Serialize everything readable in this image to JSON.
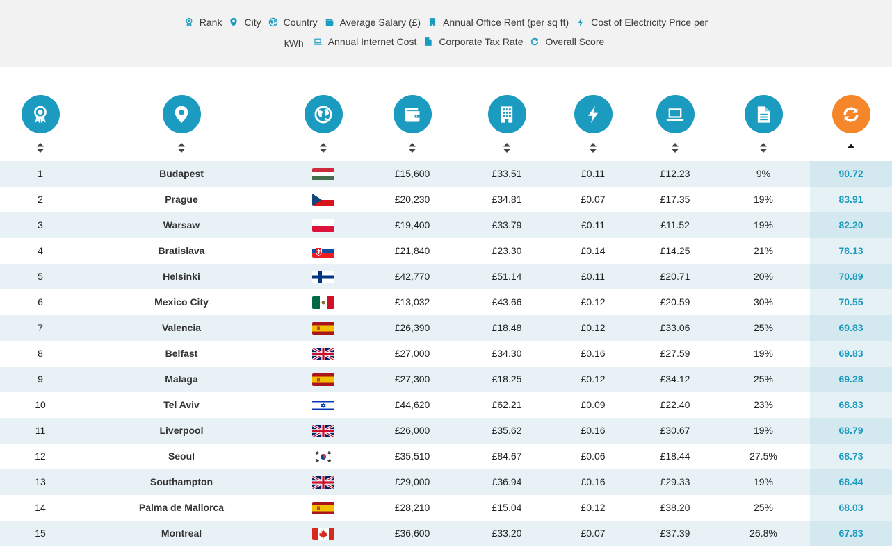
{
  "legend": {
    "line1": [
      {
        "icon": "award-icon",
        "label": "Rank"
      },
      {
        "icon": "map-pin-icon",
        "label": "City"
      },
      {
        "icon": "globe-icon",
        "label": "Country"
      },
      {
        "icon": "wallet-icon",
        "label": "Average Salary (£)"
      },
      {
        "icon": "building-icon",
        "label": "Annual Office Rent (per sq ft)"
      },
      {
        "icon": "bolt-icon",
        "label": "Cost of Electricity Price per"
      }
    ],
    "line2_prefix": "kWh",
    "line2": [
      {
        "icon": "laptop-icon",
        "label": "Annual Internet Cost"
      },
      {
        "icon": "document-icon",
        "label": "Corporate Tax Rate"
      },
      {
        "icon": "refresh-icon",
        "label": "Overall Score"
      }
    ]
  },
  "colors": {
    "accent": "#1a9bbf",
    "score_header": "#f5862a",
    "row_alt": "#e8f2f6",
    "score_col": "#d4e8f0",
    "legend_bg": "#f2f2f2"
  },
  "columns": [
    {
      "key": "rank",
      "icon": "award-icon",
      "sort": "none"
    },
    {
      "key": "city",
      "icon": "map-pin-icon",
      "sort": "none"
    },
    {
      "key": "country",
      "icon": "globe-icon",
      "sort": "none"
    },
    {
      "key": "salary",
      "icon": "wallet-icon",
      "sort": "none"
    },
    {
      "key": "rent",
      "icon": "building-icon",
      "sort": "none"
    },
    {
      "key": "electricity",
      "icon": "bolt-icon",
      "sort": "none"
    },
    {
      "key": "internet",
      "icon": "laptop-icon",
      "sort": "none"
    },
    {
      "key": "tax",
      "icon": "document-icon",
      "sort": "none"
    },
    {
      "key": "score",
      "icon": "refresh-icon",
      "sort": "ascending"
    }
  ],
  "rows": [
    {
      "rank": "1",
      "city": "Budapest",
      "flag": "hungary-flag",
      "salary": "£15,600",
      "rent": "£33.51",
      "electricity": "£0.11",
      "internet": "£12.23",
      "tax": "9%",
      "score": "90.72"
    },
    {
      "rank": "2",
      "city": "Prague",
      "flag": "czechia-flag",
      "salary": "£20,230",
      "rent": "£34.81",
      "electricity": "£0.07",
      "internet": "£17.35",
      "tax": "19%",
      "score": "83.91"
    },
    {
      "rank": "3",
      "city": "Warsaw",
      "flag": "poland-flag",
      "salary": "£19,400",
      "rent": "£33.79",
      "electricity": "£0.11",
      "internet": "£11.52",
      "tax": "19%",
      "score": "82.20"
    },
    {
      "rank": "4",
      "city": "Bratislava",
      "flag": "slovakia-flag",
      "salary": "£21,840",
      "rent": "£23.30",
      "electricity": "£0.14",
      "internet": "£14.25",
      "tax": "21%",
      "score": "78.13"
    },
    {
      "rank": "5",
      "city": "Helsinki",
      "flag": "finland-flag",
      "salary": "£42,770",
      "rent": "£51.14",
      "electricity": "£0.11",
      "internet": "£20.71",
      "tax": "20%",
      "score": "70.89"
    },
    {
      "rank": "6",
      "city": "Mexico City",
      "flag": "mexico-flag",
      "salary": "£13,032",
      "rent": "£43.66",
      "electricity": "£0.12",
      "internet": "£20.59",
      "tax": "30%",
      "score": "70.55"
    },
    {
      "rank": "7",
      "city": "Valencia",
      "flag": "spain-flag",
      "salary": "£26,390",
      "rent": "£18.48",
      "electricity": "£0.12",
      "internet": "£33.06",
      "tax": "25%",
      "score": "69.83"
    },
    {
      "rank": "8",
      "city": "Belfast",
      "flag": "uk-flag",
      "salary": "£27,000",
      "rent": "£34.30",
      "electricity": "£0.16",
      "internet": "£27.59",
      "tax": "19%",
      "score": "69.83"
    },
    {
      "rank": "9",
      "city": "Malaga",
      "flag": "spain-flag",
      "salary": "£27,300",
      "rent": "£18.25",
      "electricity": "£0.12",
      "internet": "£34.12",
      "tax": "25%",
      "score": "69.28"
    },
    {
      "rank": "10",
      "city": "Tel Aviv",
      "flag": "israel-flag",
      "salary": "£44,620",
      "rent": "£62.21",
      "electricity": "£0.09",
      "internet": "£22.40",
      "tax": "23%",
      "score": "68.83"
    },
    {
      "rank": "11",
      "city": "Liverpool",
      "flag": "uk-flag",
      "salary": "£26,000",
      "rent": "£35.62",
      "electricity": "£0.16",
      "internet": "£30.67",
      "tax": "19%",
      "score": "68.79"
    },
    {
      "rank": "12",
      "city": "Seoul",
      "flag": "south-korea-flag",
      "salary": "£35,510",
      "rent": "£84.67",
      "electricity": "£0.06",
      "internet": "£18.44",
      "tax": "27.5%",
      "score": "68.73"
    },
    {
      "rank": "13",
      "city": "Southampton",
      "flag": "uk-flag",
      "salary": "£29,000",
      "rent": "£36.94",
      "electricity": "£0.16",
      "internet": "£29.33",
      "tax": "19%",
      "score": "68.44"
    },
    {
      "rank": "14",
      "city": "Palma de Mallorca",
      "flag": "spain-flag",
      "salary": "£28,210",
      "rent": "£15.04",
      "electricity": "£0.12",
      "internet": "£38.20",
      "tax": "25%",
      "score": "68.03"
    },
    {
      "rank": "15",
      "city": "Montreal",
      "flag": "canada-flag",
      "salary": "£36,600",
      "rent": "£33.20",
      "electricity": "£0.07",
      "internet": "£37.39",
      "tax": "26.8%",
      "score": "67.83"
    }
  ]
}
